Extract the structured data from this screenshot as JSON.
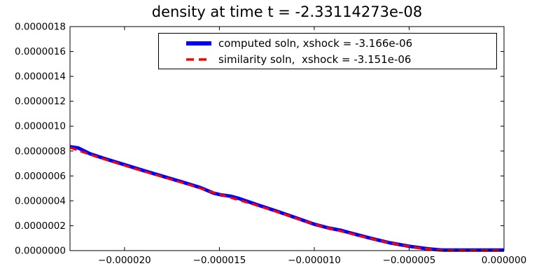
{
  "chart_data": {
    "type": "line",
    "title": "density at time t = -2.33114273e-08",
    "xlabel": "",
    "ylabel": "",
    "xlim": [
      -2.2875e-05,
      0
    ],
    "ylim": [
      0,
      1.8e-06
    ],
    "grid": false,
    "legend_position": "upper right",
    "x_ticks": {
      "values": [
        -2e-05,
        -1.5e-05,
        -1e-05,
        -5e-06,
        0.0
      ],
      "labels": [
        "−0.000020",
        "−0.000015",
        "−0.000010",
        "−0.000005",
        "0.000000"
      ]
    },
    "y_ticks": {
      "values": [
        0.0,
        2e-07,
        4e-07,
        6e-07,
        8e-07,
        1e-06,
        1.2e-06,
        1.4e-06,
        1.6e-06,
        1.8e-06
      ],
      "labels": [
        "0.0000000",
        "0.0000002",
        "0.0000004",
        "0.0000006",
        "0.0000008",
        "0.0000010",
        "0.0000012",
        "0.0000014",
        "0.0000016",
        "0.0000018"
      ]
    },
    "series": [
      {
        "name": "computed",
        "label": "computed soln, xshock = -3.166e-06",
        "color": "#0000ff",
        "line_style": "solid",
        "line_width": 5,
        "points": [
          [
            -2.2875e-05,
            8.35e-07
          ],
          [
            -2.245e-05,
            8.25e-07
          ],
          [
            -2.18e-05,
            7.77e-07
          ],
          [
            -2.1e-05,
            7.37e-07
          ],
          [
            -2e-05,
            6.9e-07
          ],
          [
            -1.9e-05,
            6.43e-07
          ],
          [
            -1.8e-05,
            5.98e-07
          ],
          [
            -1.7e-05,
            5.53e-07
          ],
          [
            -1.6e-05,
            5.06e-07
          ],
          [
            -1.53e-05,
            4.62e-07
          ],
          [
            -1.49e-05,
            4.47e-07
          ],
          [
            -1.44e-05,
            4.37e-07
          ],
          [
            -1.4e-05,
            4.2e-07
          ],
          [
            -1.3e-05,
            3.68e-07
          ],
          [
            -1.2e-05,
            3.18e-07
          ],
          [
            -1.1e-05,
            2.65e-07
          ],
          [
            -1e-05,
            2.12e-07
          ],
          [
            -9.2e-06,
            1.8e-07
          ],
          [
            -8.6e-06,
            1.63e-07
          ],
          [
            -8e-06,
            1.38e-07
          ],
          [
            -7e-06,
            9.8e-08
          ],
          [
            -6e-06,
            6.2e-08
          ],
          [
            -5e-06,
            3.5e-08
          ],
          [
            -4e-06,
            1.4e-08
          ],
          [
            -3.4e-06,
            6e-09
          ],
          [
            -3.166e-06,
            4e-09
          ],
          [
            -2.5e-06,
            4e-09
          ],
          [
            -1.5e-06,
            4e-09
          ],
          [
            -5e-07,
            4e-09
          ],
          [
            0.0,
            4e-09
          ]
        ]
      },
      {
        "name": "similarity",
        "label": "similarity soln,  xshock = -3.151e-06",
        "color": "#ff0000",
        "line_style": "dashed",
        "line_width": 3.2,
        "dash_pattern": [
          10,
          6
        ],
        "points": [
          [
            -2.2875e-05,
            8.28e-07
          ],
          [
            -2.15e-05,
            7.55e-07
          ],
          [
            -2.05e-05,
            7.07e-07
          ],
          [
            -1.95e-05,
            6.6e-07
          ],
          [
            -1.85e-05,
            6.15e-07
          ],
          [
            -1.75e-05,
            5.7e-07
          ],
          [
            -1.65e-05,
            5.25e-07
          ],
          [
            -1.55e-05,
            4.75e-07
          ],
          [
            -1.45e-05,
            4.3e-07
          ],
          [
            -1.35e-05,
            3.85e-07
          ],
          [
            -1.25e-05,
            3.38e-07
          ],
          [
            -1.15e-05,
            2.88e-07
          ],
          [
            -1.05e-05,
            2.36e-07
          ],
          [
            -9.5e-06,
            1.9e-07
          ],
          [
            -8.5e-06,
            1.52e-07
          ],
          [
            -7.5e-06,
            1.14e-07
          ],
          [
            -6.5e-06,
            7.8e-08
          ],
          [
            -5.5e-06,
            4.6e-08
          ],
          [
            -4.5e-06,
            2.1e-08
          ],
          [
            -3.7e-06,
            7e-09
          ],
          [
            -3.151e-06,
            2e-09
          ],
          [
            -2e-06,
            2e-09
          ],
          [
            -1e-06,
            2e-09
          ],
          [
            0.0,
            2e-09
          ]
        ]
      }
    ],
    "axes_color": "#000000",
    "background_color": "#ffffff"
  }
}
